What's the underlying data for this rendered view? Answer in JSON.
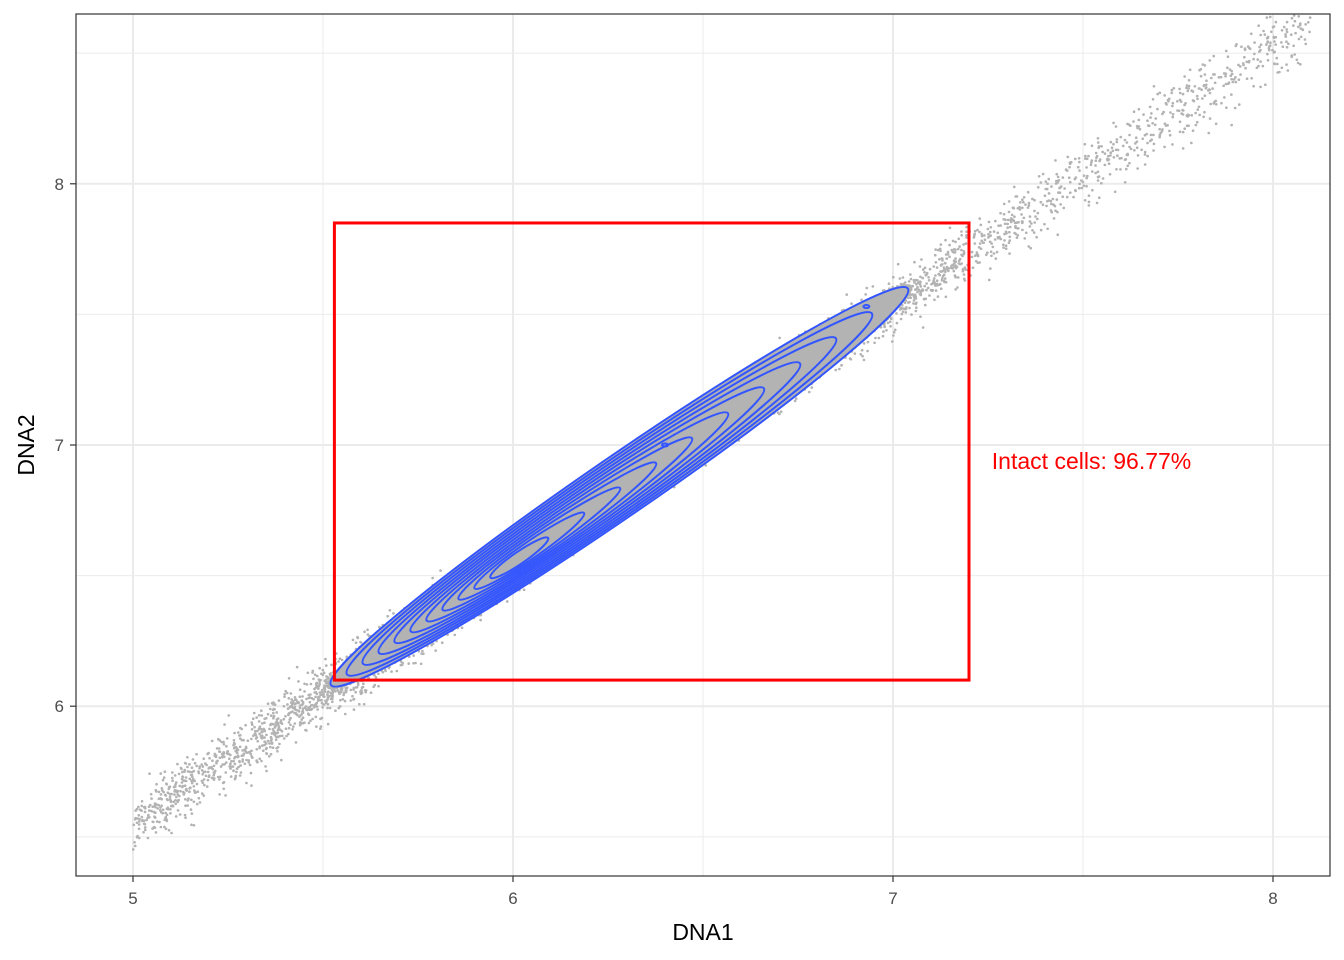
{
  "chart_data": {
    "type": "scatter",
    "title": "",
    "xlabel": "DNA1",
    "ylabel": "DNA2",
    "xlim": [
      4.85,
      8.15
    ],
    "ylim": [
      5.35,
      8.65
    ],
    "x_ticks": [
      5,
      6,
      7,
      8
    ],
    "y_ticks": [
      6,
      7,
      8
    ],
    "grid": true,
    "legend": "none",
    "colors": {
      "points": "#b3b3b3",
      "contours": "#3355ff",
      "gate": "#ff0000",
      "annotation": "#ff0000",
      "grid": "#ebebeb",
      "border": "#333333"
    },
    "point_cloud": {
      "description_source": "layers",
      "trend": {
        "slope": 0.991,
        "intercept": 0.6
      },
      "x_range": [
        5.0,
        8.1
      ]
    },
    "density_contour": {
      "center": [
        6.28,
        6.84
      ],
      "peak": [
        5.97,
        6.52
      ],
      "levels": 11
    },
    "gate": {
      "xmin": 5.53,
      "xmax": 7.2,
      "ymin": 6.1,
      "ymax": 7.85
    },
    "annotation": {
      "text": "Intact cells: 96.77%",
      "x": 7.26,
      "y": 6.97
    }
  }
}
